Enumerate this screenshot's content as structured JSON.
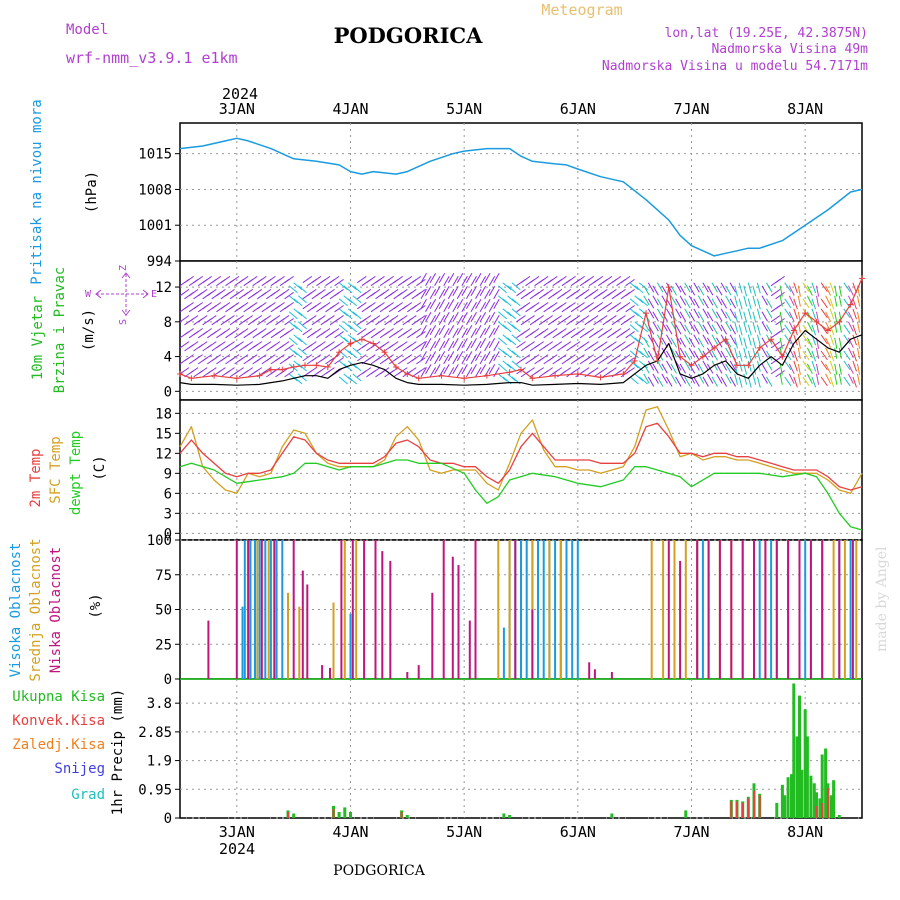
{
  "header": {
    "model_label": "Model",
    "model_name": "wrf-nmm_v3.9.1 e1km",
    "title": "PODGORICA",
    "meteogram": "Meteogram",
    "lonlat": "lon,lat (19.25E, 42.3875N)",
    "elevation": "Nadmorska Visina 49m",
    "model_elevation": "Nadmorska Visina u modelu 54.7171m",
    "footer_title": "PODGORICA",
    "credit": "made by Angel"
  },
  "time_axis": {
    "year": "2024",
    "labels": [
      "3JAN",
      "4JAN",
      "5JAN",
      "6JAN",
      "7JAN",
      "8JAN"
    ],
    "start_day": 2.5,
    "end_day": 8.5
  },
  "colors": {
    "pressure": "#1a9be0",
    "wind_label": "#22bb22",
    "temp2m": "#e84040",
    "sfc": "#d4a020",
    "dewpt": "#22cc22",
    "high_cloud": "#1a9be0",
    "mid_cloud": "#d4a020",
    "low_cloud": "#c0157e",
    "total_precip": "#22bb22",
    "conv_precip": "#e84040",
    "frozen": "#f08020",
    "snow": "#4040e0",
    "hail": "#20c0c0",
    "wind_speed_line": "#000000",
    "gust_line": "#e84040",
    "purple_text": "#b040d0"
  },
  "chart_data": [
    {
      "type": "line",
      "panel": "pressure",
      "ylabel_main": "Pritisak na nivou mora",
      "ylabel_unit": "(hPa)",
      "yticks": [
        994,
        1001,
        1008,
        1015
      ],
      "ylim": [
        994,
        1021
      ],
      "series": [
        {
          "x": [
            2.5,
            2.7,
            2.9,
            3.0,
            3.1,
            3.3,
            3.5,
            3.7,
            3.9,
            4.0,
            4.1,
            4.2,
            4.4,
            4.5,
            4.7,
            4.9,
            5.0,
            5.2,
            5.4,
            5.5,
            5.6,
            5.8,
            5.9,
            6.0,
            6.2,
            6.4,
            6.6,
            6.8,
            6.9,
            7.0,
            7.1,
            7.2,
            7.3,
            7.4,
            7.5,
            7.6,
            7.8,
            8.0,
            8.2,
            8.4,
            8.5
          ],
          "y": [
            1016,
            1016.5,
            1017.5,
            1018,
            1017.5,
            1016,
            1014,
            1013.5,
            1012.8,
            1011.5,
            1011,
            1011.5,
            1011,
            1011.5,
            1013.5,
            1015,
            1015.5,
            1016,
            1016,
            1014.5,
            1013.5,
            1013,
            1012.8,
            1012,
            1010.5,
            1009.5,
            1006,
            1002,
            999,
            997,
            996,
            995,
            995.5,
            996,
            996.5,
            996.5,
            998,
            1001,
            1004,
            1007.5,
            1008
          ]
        }
      ]
    },
    {
      "type": "line",
      "panel": "wind",
      "ylabel_main": "10m Vjetar",
      "ylabel_sub": "Brzina i Pravac",
      "ylabel_unit": "(m/s)",
      "compass": [
        "Z",
        "W",
        "E",
        "S"
      ],
      "yticks": [
        0,
        4,
        8,
        12
      ],
      "ylim": [
        -1,
        15
      ],
      "series": [
        {
          "name": "speed",
          "x": [
            2.5,
            2.6,
            2.8,
            3.0,
            3.2,
            3.3,
            3.4,
            3.5,
            3.6,
            3.7,
            3.8,
            3.9,
            4.0,
            4.1,
            4.2,
            4.3,
            4.4,
            4.5,
            4.6,
            4.8,
            5.0,
            5.2,
            5.4,
            5.5,
            5.6,
            5.8,
            6.0,
            6.2,
            6.4,
            6.5,
            6.6,
            6.7,
            6.8,
            6.9,
            7.0,
            7.1,
            7.2,
            7.3,
            7.4,
            7.5,
            7.6,
            7.7,
            7.8,
            7.9,
            8.0,
            8.1,
            8.2,
            8.3,
            8.4,
            8.5
          ],
          "y": [
            1,
            0.8,
            0.8,
            0.7,
            0.8,
            1,
            1.2,
            1.5,
            1.8,
            1.8,
            1.5,
            2.5,
            3,
            3.3,
            3,
            2.5,
            1.5,
            1,
            0.8,
            0.8,
            0.7,
            0.8,
            1,
            1,
            0.7,
            0.8,
            0.9,
            0.8,
            1,
            2,
            3,
            3.5,
            5.5,
            2,
            1.5,
            2,
            3,
            3.5,
            2,
            1.5,
            3,
            4,
            3,
            5.5,
            7,
            6,
            5,
            4.5,
            6,
            6.5
          ]
        },
        {
          "name": "gust",
          "x": [
            2.5,
            2.6,
            2.8,
            3.0,
            3.2,
            3.3,
            3.4,
            3.5,
            3.6,
            3.7,
            3.8,
            3.9,
            4.0,
            4.1,
            4.2,
            4.3,
            4.4,
            4.5,
            4.6,
            4.8,
            5.0,
            5.2,
            5.4,
            5.5,
            5.6,
            5.8,
            6.0,
            6.2,
            6.4,
            6.5,
            6.6,
            6.7,
            6.8,
            6.9,
            7.0,
            7.1,
            7.2,
            7.3,
            7.4,
            7.5,
            7.6,
            7.7,
            7.8,
            7.9,
            8.0,
            8.1,
            8.2,
            8.3,
            8.4,
            8.5
          ],
          "y": [
            2,
            1.5,
            1.8,
            1.5,
            1.8,
            2.5,
            2.5,
            2.8,
            3,
            3,
            2.8,
            4.5,
            5.5,
            6,
            5.5,
            4.5,
            2.8,
            2,
            1.5,
            1.8,
            1.5,
            1.8,
            2.2,
            2.5,
            1.5,
            1.8,
            2,
            1.6,
            2,
            3.5,
            9,
            3.5,
            12,
            4,
            3,
            4,
            5,
            6,
            3,
            3,
            5,
            6,
            4,
            7,
            9,
            8,
            7,
            8,
            10,
            13
          ]
        }
      ]
    },
    {
      "type": "line",
      "panel": "temperature",
      "ylabel_t2m": "2m Temp",
      "ylabel_sfc": "SFC Temp",
      "ylabel_dew": "dewpt Temp",
      "ylabel_unit": "(C)",
      "yticks": [
        0,
        3,
        6,
        9,
        12,
        15,
        18
      ],
      "ylim": [
        -1,
        20
      ],
      "series": [
        {
          "name": "2m",
          "x": [
            2.5,
            2.6,
            2.7,
            2.8,
            2.9,
            3.0,
            3.1,
            3.2,
            3.3,
            3.4,
            3.5,
            3.6,
            3.7,
            3.8,
            3.9,
            4.0,
            4.2,
            4.3,
            4.4,
            4.5,
            4.6,
            4.7,
            4.8,
            4.9,
            5.0,
            5.1,
            5.2,
            5.3,
            5.4,
            5.5,
            5.6,
            5.7,
            5.8,
            5.9,
            6.0,
            6.1,
            6.2,
            6.3,
            6.4,
            6.5,
            6.6,
            6.7,
            6.8,
            6.9,
            7.0,
            7.1,
            7.2,
            7.3,
            7.4,
            7.5,
            7.6,
            7.7,
            7.8,
            7.9,
            8.0,
            8.1,
            8.2,
            8.3,
            8.4,
            8.5
          ],
          "y": [
            12,
            14,
            12,
            10.5,
            9,
            8.5,
            9,
            9,
            9.5,
            12,
            14.5,
            14,
            12,
            11,
            10.5,
            10.5,
            10.5,
            11.5,
            13.5,
            14,
            13,
            11,
            10.5,
            10.5,
            10,
            10,
            8.5,
            7.5,
            9.5,
            13,
            15,
            13,
            11,
            11,
            11,
            11,
            10.5,
            10.5,
            10.5,
            12,
            16,
            16.5,
            14.5,
            12,
            12,
            11.5,
            12,
            12,
            11.5,
            11.5,
            11,
            10.5,
            10,
            9.5,
            9.5,
            9.5,
            8.5,
            7,
            6.5,
            7
          ]
        },
        {
          "name": "sfc",
          "x": [
            2.5,
            2.6,
            2.7,
            2.8,
            2.9,
            3.0,
            3.1,
            3.2,
            3.3,
            3.4,
            3.5,
            3.6,
            3.7,
            3.8,
            3.9,
            4.0,
            4.2,
            4.3,
            4.4,
            4.5,
            4.6,
            4.7,
            4.8,
            4.9,
            5.0,
            5.1,
            5.2,
            5.3,
            5.4,
            5.5,
            5.6,
            5.7,
            5.8,
            5.9,
            6.0,
            6.1,
            6.2,
            6.3,
            6.4,
            6.5,
            6.6,
            6.7,
            6.8,
            6.9,
            7.0,
            7.1,
            7.2,
            7.3,
            7.4,
            7.5,
            7.6,
            7.7,
            7.8,
            7.9,
            8.0,
            8.1,
            8.2,
            8.3,
            8.4,
            8.5
          ],
          "y": [
            13,
            16,
            10,
            8,
            6.5,
            6,
            9,
            8.5,
            9,
            13,
            15.5,
            15,
            12,
            10.5,
            10,
            10,
            10,
            11,
            14.5,
            16,
            14,
            9.5,
            9,
            9.5,
            9.5,
            9.5,
            7.5,
            6.5,
            10.5,
            15,
            17,
            12.5,
            10,
            10,
            9.5,
            9.5,
            9,
            9.5,
            10,
            13,
            18.5,
            19,
            15.5,
            11.5,
            12,
            11,
            11.5,
            11.5,
            11,
            11,
            10.5,
            10,
            9.5,
            9,
            9,
            9,
            8,
            6.5,
            6,
            9
          ]
        },
        {
          "name": "dewpt",
          "x": [
            2.5,
            2.6,
            2.8,
            3.0,
            3.2,
            3.4,
            3.5,
            3.6,
            3.7,
            3.9,
            4.0,
            4.2,
            4.4,
            4.5,
            4.6,
            4.8,
            5.0,
            5.1,
            5.2,
            5.3,
            5.4,
            5.6,
            5.8,
            6.0,
            6.2,
            6.4,
            6.5,
            6.6,
            6.7,
            6.9,
            7.0,
            7.2,
            7.4,
            7.6,
            7.8,
            8.0,
            8.1,
            8.2,
            8.3,
            8.4,
            8.5
          ],
          "y": [
            10,
            10.5,
            9.5,
            7.5,
            8,
            8.5,
            9,
            10.5,
            10.5,
            9.5,
            10,
            10,
            11,
            11,
            10.5,
            10.5,
            9,
            6.5,
            4.5,
            5.5,
            8,
            9,
            8.5,
            7.5,
            7,
            8,
            10,
            10,
            9.5,
            8.5,
            7,
            9,
            9,
            9,
            8.5,
            9,
            8.5,
            6,
            3,
            1,
            0.5
          ]
        }
      ]
    },
    {
      "type": "bar",
      "panel": "cloud",
      "ylabel_high": "Visoka Oblacnost",
      "ylabel_mid": "Srednja Oblacnost",
      "ylabel_low": "Niska Oblacnost",
      "ylabel_unit": "(%)",
      "yticks": [
        0,
        25,
        50,
        75,
        100
      ],
      "ylim": [
        0,
        100
      ],
      "series": [
        {
          "name": "high",
          "x": [
            3.05,
            3.07,
            3.12,
            3.16,
            3.2,
            3.25,
            3.3,
            3.35,
            3.4,
            4.0,
            5.35,
            5.4,
            5.45,
            5.5,
            5.55,
            5.6,
            5.65,
            5.7,
            5.75,
            5.8,
            5.85,
            5.9,
            5.95,
            6.0,
            7.05,
            7.1,
            7.6,
            7.7,
            8.0,
            8.3,
            8.4
          ],
          "y": [
            52,
            100,
            100,
            100,
            100,
            100,
            100,
            100,
            100,
            47,
            37,
            100,
            100,
            100,
            100,
            100,
            100,
            100,
            100,
            100,
            100,
            100,
            100,
            100,
            100,
            100,
            100,
            100,
            100,
            100,
            100
          ]
        },
        {
          "name": "mid",
          "x": [
            3.1,
            3.18,
            3.28,
            3.45,
            3.55,
            3.85,
            3.95,
            4.05,
            5.3,
            5.4,
            5.6,
            5.75,
            5.85,
            6.65,
            6.75,
            6.85,
            6.95,
            7.05,
            7.15,
            7.25,
            7.35,
            7.45,
            7.55,
            7.65,
            7.75,
            7.85,
            7.95,
            8.05,
            8.15,
            8.25,
            8.35,
            8.45
          ],
          "y": [
            100,
            100,
            100,
            62,
            52,
            55,
            100,
            100,
            100,
            100,
            100,
            100,
            100,
            100,
            100,
            100,
            100,
            100,
            100,
            100,
            100,
            100,
            100,
            100,
            100,
            100,
            100,
            100,
            100,
            100,
            100,
            100
          ]
        },
        {
          "name": "low",
          "x": [
            2.75,
            3.0,
            3.1,
            3.22,
            3.33,
            3.5,
            3.58,
            3.62,
            3.75,
            3.82,
            3.92,
            4.02,
            4.12,
            4.22,
            4.28,
            4.35,
            4.5,
            4.6,
            4.72,
            4.82,
            4.9,
            4.95,
            5.05,
            5.1,
            5.45,
            5.6,
            6.1,
            6.15,
            6.3,
            6.8,
            6.9,
            7.05,
            7.15,
            7.25,
            7.35,
            7.45,
            7.55,
            7.65,
            7.75,
            7.85,
            7.95,
            8.05,
            8.15,
            8.3,
            8.42
          ],
          "y": [
            42,
            100,
            100,
            100,
            100,
            100,
            78,
            68,
            10,
            8,
            100,
            100,
            100,
            100,
            92,
            85,
            5,
            10,
            62,
            100,
            88,
            82,
            42,
            100,
            100,
            50,
            12,
            7,
            5,
            100,
            85,
            100,
            100,
            100,
            100,
            100,
            100,
            100,
            100,
            100,
            100,
            100,
            100,
            100,
            100
          ]
        }
      ]
    },
    {
      "type": "bar",
      "panel": "precip",
      "ylabel_total": "Ukupna Kisa",
      "ylabel_conv": "Konvek.Kisa",
      "ylabel_frozen": "Zaledj.Kisa",
      "ylabel_snow": "Snijeg",
      "ylabel_hail": "Grad",
      "ylabel_unit": "1hr Precip (mm)",
      "yticks": [
        0,
        0.95,
        1.9,
        2.85,
        3.8
      ],
      "ylim": [
        0,
        4.6
      ],
      "series": [
        {
          "name": "total",
          "x": [
            3.45,
            3.5,
            3.85,
            3.9,
            3.95,
            4.0,
            4.45,
            4.5,
            5.35,
            5.4,
            6.3,
            6.95,
            7.35,
            7.4,
            7.45,
            7.5,
            7.55,
            7.6,
            7.75,
            7.8,
            7.82,
            7.85,
            7.88,
            7.9,
            7.93,
            7.95,
            7.97,
            8.0,
            8.02,
            8.05,
            8.08,
            8.1,
            8.13,
            8.15,
            8.18,
            8.2,
            8.23,
            8.25,
            8.3
          ],
          "y": [
            0.25,
            0.15,
            0.4,
            0.2,
            0.35,
            0.2,
            0.25,
            0.1,
            0.15,
            0.1,
            0.15,
            0.25,
            0.6,
            0.6,
            0.55,
            0.7,
            1.15,
            0.8,
            0.5,
            1.1,
            0.75,
            1.35,
            1.45,
            4.45,
            2.7,
            4.05,
            1.6,
            3.6,
            2.7,
            1.4,
            1.15,
            0.85,
            0.65,
            2.1,
            2.3,
            1.15,
            0.75,
            1.25,
            0.1
          ]
        },
        {
          "name": "conv",
          "x": [
            3.45,
            3.85,
            4.45,
            7.35,
            7.4,
            7.45,
            7.5,
            7.55,
            7.6,
            8.1,
            8.15,
            8.2
          ],
          "y": [
            0.2,
            0.3,
            0.2,
            0.55,
            0.55,
            0.5,
            0.65,
            0.9,
            0.75,
            0.4,
            0.5,
            1.0
          ]
        }
      ]
    }
  ]
}
